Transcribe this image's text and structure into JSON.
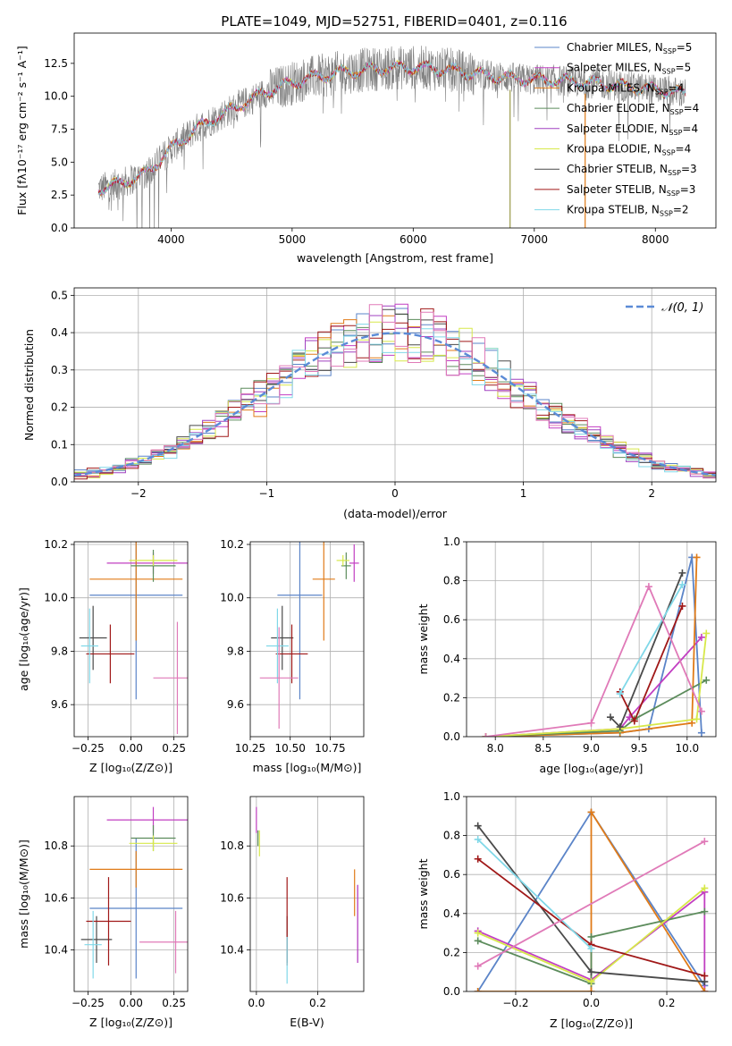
{
  "title": "PLATE=1049, MJD=52751, FIBERID=0401, z=0.116",
  "colors": {
    "miles_chabrier": "#5b84c8",
    "miles_salpeter": "#c23fc2",
    "miles_kroupa": "#e07b18",
    "elodie_chabrier": "#5c8c5c",
    "elodie_salpeter": "#a040c0",
    "elodie_kroupa": "#d7e84a",
    "stelib_chabrier": "#4a4a4a",
    "stelib_salpeter": "#a01818",
    "stelib_kroupa": "#80d8e8",
    "extra_pink": "#e07ab8",
    "gauss": "#5b8bd6",
    "data_gray": "#7f7f7f"
  },
  "chart_data": [
    {
      "type": "line",
      "title": "PLATE=1049, MJD=52751, FIBERID=0401, z=0.116",
      "xlabel": "wavelength [Angstrom, rest frame]",
      "ylabel": "Flux [fλ10⁻¹⁷ erg cm⁻² s⁻¹ A⁻¹]",
      "xlim": [
        3200,
        8500
      ],
      "ylim": [
        0,
        14.8
      ],
      "xticks": [
        "4000",
        "5000",
        "6000",
        "7000",
        "8000"
      ],
      "yticks": [
        "0.0",
        "2.5",
        "5.0",
        "7.5",
        "10.0",
        "12.5"
      ],
      "continuum": {
        "x": [
          3400,
          3600,
          3800,
          4000,
          4200,
          4500,
          4800,
          5100,
          5400,
          5700,
          6000,
          6300,
          6600,
          6900,
          7200,
          7500,
          7800,
          8100,
          8250
        ],
        "y": [
          3.0,
          3.4,
          4.2,
          6.0,
          7.5,
          9.0,
          10.4,
          11.3,
          11.8,
          12.1,
          12.2,
          12.0,
          11.6,
          11.3,
          11.2,
          11.0,
          10.7,
          10.4,
          10.2
        ]
      },
      "legend_position": "top-right",
      "legend": [
        {
          "label": "Chabrier MILES, N",
          "sub": "SSP",
          "tail": "=5",
          "color": "#5b84c8"
        },
        {
          "label": "Salpeter MILES, N",
          "sub": "SSP",
          "tail": "=5",
          "color": "#c23fc2"
        },
        {
          "label": "Kroupa MILES, N",
          "sub": "SSP",
          "tail": "=4",
          "color": "#e07b18"
        },
        {
          "label": "Chabrier ELODIE, N",
          "sub": "SSP",
          "tail": "=4",
          "color": "#5c8c5c"
        },
        {
          "label": "Salpeter ELODIE, N",
          "sub": "SSP",
          "tail": "=4",
          "color": "#a040c0"
        },
        {
          "label": "Kroupa ELODIE, N",
          "sub": "SSP",
          "tail": "=4",
          "color": "#d7e84a"
        },
        {
          "label": "Chabrier STELIB, N",
          "sub": "SSP",
          "tail": "=3",
          "color": "#4a4a4a"
        },
        {
          "label": "Salpeter STELIB, N",
          "sub": "SSP",
          "tail": "=3",
          "color": "#a01818"
        },
        {
          "label": "Kroupa STELIB, N",
          "sub": "SSP",
          "tail": "=2",
          "color": "#80d8e8"
        }
      ]
    },
    {
      "type": "histogram",
      "xlabel": "(data-model)/error",
      "ylabel": "Normed distribution",
      "xlim": [
        -2.5,
        2.5
      ],
      "ylim": [
        0,
        0.52
      ],
      "xticks": [
        "−2",
        "−1",
        "0",
        "1",
        "2"
      ],
      "yticks": [
        "0.0",
        "0.1",
        "0.2",
        "0.3",
        "0.4",
        "0.5"
      ],
      "bin_width": 0.1,
      "gauss_label": "𝒩(0, 1)",
      "grid": true
    },
    {
      "type": "errorbar",
      "xlabel": "Z [log₁₀(Z/Z⊙)]",
      "ylabel": "age  [log₁₀(age/yr)]",
      "xlim": [
        -0.33,
        0.33
      ],
      "ylim": [
        9.48,
        10.21
      ],
      "xticks": [
        "−0.25",
        "0.00",
        "0.25"
      ],
      "yticks": [
        "9.6",
        "9.8",
        "10.0",
        "10.2"
      ],
      "points": [
        {
          "x": 0.03,
          "y": 10.01,
          "xerr": 0.27,
          "yerr": 0.39,
          "c": "#5b84c8"
        },
        {
          "x": 0.13,
          "y": 10.13,
          "xerr": 0.27,
          "yerr": 0.04,
          "c": "#c23fc2"
        },
        {
          "x": 0.03,
          "y": 10.07,
          "xerr": 0.27,
          "yerr": 0.23,
          "c": "#e07b18"
        },
        {
          "x": 0.13,
          "y": 10.12,
          "xerr": 0.13,
          "yerr": 0.06,
          "c": "#5c8c5c"
        },
        {
          "x": 0.13,
          "y": 10.14,
          "xerr": 0.14,
          "yerr": 0.02,
          "c": "#d7e84a"
        },
        {
          "x": -0.22,
          "y": 9.85,
          "xerr": 0.08,
          "yerr": 0.12,
          "c": "#4a4a4a"
        },
        {
          "x": -0.12,
          "y": 9.79,
          "xerr": 0.14,
          "yerr": 0.11,
          "c": "#a01818"
        },
        {
          "x": -0.24,
          "y": 9.82,
          "xerr": 0.05,
          "yerr": 0.14,
          "c": "#80d8e8"
        },
        {
          "x": 0.27,
          "y": 9.7,
          "xerr": 0.14,
          "yerr": 0.21,
          "c": "#e07ab8"
        }
      ]
    },
    {
      "type": "errorbar",
      "xlabel": "mass [log₁₀(M/M⊙)]",
      "xlim": [
        10.25,
        10.96
      ],
      "ylim": [
        9.48,
        10.21
      ],
      "xticks": [
        "10.25",
        "10.50",
        "10.75"
      ],
      "yticks": [
        "9.6",
        "9.8",
        "10.0",
        "10.2"
      ],
      "points": [
        {
          "x": 10.56,
          "y": 10.01,
          "xerr": 0.14,
          "yerr": 0.39,
          "c": "#5b84c8"
        },
        {
          "x": 10.9,
          "y": 10.13,
          "xerr": 0.03,
          "yerr": 0.07,
          "c": "#c23fc2"
        },
        {
          "x": 10.71,
          "y": 10.07,
          "xerr": 0.07,
          "yerr": 0.23,
          "c": "#e07b18"
        },
        {
          "x": 10.85,
          "y": 10.12,
          "xerr": 0.03,
          "yerr": 0.05,
          "c": "#5c8c5c"
        },
        {
          "x": 10.83,
          "y": 10.14,
          "xerr": 0.04,
          "yerr": 0.02,
          "c": "#d7e84a"
        },
        {
          "x": 10.45,
          "y": 9.85,
          "xerr": 0.07,
          "yerr": 0.12,
          "c": "#4a4a4a"
        },
        {
          "x": 10.51,
          "y": 9.79,
          "xerr": 0.1,
          "yerr": 0.11,
          "c": "#a01818"
        },
        {
          "x": 10.42,
          "y": 9.82,
          "xerr": 0.07,
          "yerr": 0.14,
          "c": "#80d8e8"
        },
        {
          "x": 10.43,
          "y": 9.7,
          "xerr": 0.12,
          "yerr": 0.19,
          "c": "#e07ab8"
        }
      ]
    },
    {
      "type": "line",
      "xlabel": "age  [log₁₀(age/yr)]",
      "ylabel": "mass weight",
      "xlim": [
        7.7,
        10.3
      ],
      "ylim": [
        0,
        1.0
      ],
      "xticks": [
        "8.0",
        "8.5",
        "9.0",
        "9.5",
        "10.0"
      ],
      "yticks": [
        "0.0",
        "0.2",
        "0.4",
        "0.6",
        "0.8",
        "1.0"
      ],
      "grid": true,
      "series": [
        {
          "c": "#5b84c8",
          "x": [
            7.9,
            9.3,
            9.6,
            10.05,
            10.15
          ],
          "y": [
            0.0,
            0.02,
            0.04,
            0.92,
            0.02
          ]
        },
        {
          "c": "#c23fc2",
          "x": [
            7.9,
            9.3,
            9.4,
            10.15
          ],
          "y": [
            0.0,
            0.04,
            0.1,
            0.51
          ]
        },
        {
          "c": "#e07b18",
          "x": [
            7.9,
            9.3,
            10.05,
            10.1
          ],
          "y": [
            0.0,
            0.02,
            0.07,
            0.92
          ]
        },
        {
          "c": "#5c8c5c",
          "x": [
            7.9,
            9.3,
            9.45,
            10.2
          ],
          "y": [
            0.0,
            0.03,
            0.09,
            0.29
          ]
        },
        {
          "c": "#d7e84a",
          "x": [
            7.9,
            9.3,
            10.1,
            10.2
          ],
          "y": [
            0.0,
            0.04,
            0.09,
            0.53
          ]
        },
        {
          "c": "#4a4a4a",
          "x": [
            9.2,
            9.3,
            9.95
          ],
          "y": [
            0.1,
            0.05,
            0.84
          ]
        },
        {
          "c": "#a01818",
          "x": [
            9.3,
            9.45,
            9.95
          ],
          "y": [
            0.23,
            0.08,
            0.67
          ]
        },
        {
          "c": "#80d8e8",
          "x": [
            9.3,
            9.95
          ],
          "y": [
            0.22,
            0.78
          ]
        },
        {
          "c": "#e07ab8",
          "x": [
            7.9,
            9.0,
            9.6,
            10.15
          ],
          "y": [
            0.0,
            0.07,
            0.77,
            0.13
          ]
        }
      ]
    },
    {
      "type": "errorbar",
      "xlabel": "Z [log₁₀(Z/Z⊙)]",
      "ylabel": "mass [log₁₀(M/M⊙)]",
      "xlim": [
        -0.33,
        0.33
      ],
      "ylim": [
        10.24,
        10.99
      ],
      "xticks": [
        "−0.25",
        "0.00",
        "0.25"
      ],
      "yticks": [
        "10.4",
        "10.6",
        "10.8"
      ],
      "points": [
        {
          "x": 0.03,
          "y": 10.56,
          "xerr": 0.27,
          "yerr": 0.27,
          "c": "#5b84c8"
        },
        {
          "x": 0.13,
          "y": 10.9,
          "xerr": 0.27,
          "yerr": 0.05,
          "c": "#c23fc2"
        },
        {
          "x": 0.03,
          "y": 10.71,
          "xerr": 0.27,
          "yerr": 0.07,
          "c": "#e07b18"
        },
        {
          "x": 0.13,
          "y": 10.83,
          "xerr": 0.13,
          "yerr": 0.05,
          "c": "#5c8c5c"
        },
        {
          "x": 0.13,
          "y": 10.81,
          "xerr": 0.14,
          "yerr": 0.03,
          "c": "#d7e84a"
        },
        {
          "x": -0.2,
          "y": 10.44,
          "xerr": 0.09,
          "yerr": 0.09,
          "c": "#4a4a4a"
        },
        {
          "x": -0.13,
          "y": 10.51,
          "xerr": 0.13,
          "yerr": 0.17,
          "c": "#a01818"
        },
        {
          "x": -0.22,
          "y": 10.42,
          "xerr": 0.05,
          "yerr": 0.13,
          "c": "#80d8e8"
        },
        {
          "x": 0.26,
          "y": 10.43,
          "xerr": 0.21,
          "yerr": 0.12,
          "c": "#e07ab8"
        }
      ]
    },
    {
      "type": "errorbar",
      "xlabel": "E(B-V)",
      "xlim": [
        -0.02,
        0.35
      ],
      "ylim": [
        10.24,
        10.99
      ],
      "xticks": [
        "0.0",
        "0.2"
      ],
      "yticks": [
        "10.4",
        "10.6",
        "10.8"
      ],
      "points": [
        {
          "x": 0.33,
          "y": 10.5,
          "xerr": 0,
          "yerr": 0.15,
          "c": "#5b84c8"
        },
        {
          "x": 0.0,
          "y": 10.9,
          "xerr": 0,
          "yerr": 0.05,
          "c": "#c23fc2"
        },
        {
          "x": 0.32,
          "y": 10.62,
          "xerr": 0,
          "yerr": 0.09,
          "c": "#e07b18"
        },
        {
          "x": 0.005,
          "y": 10.83,
          "xerr": 0,
          "yerr": 0.03,
          "c": "#5c8c5c"
        },
        {
          "x": 0.01,
          "y": 10.81,
          "xerr": 0,
          "yerr": 0.05,
          "c": "#d7e84a"
        },
        {
          "x": 0.1,
          "y": 10.44,
          "xerr": 0,
          "yerr": 0.09,
          "c": "#4a4a4a"
        },
        {
          "x": 0.1,
          "y": 10.51,
          "xerr": 0,
          "yerr": 0.17,
          "c": "#a01818"
        },
        {
          "x": 0.1,
          "y": 10.36,
          "xerr": 0,
          "yerr": 0.09,
          "c": "#80d8e8"
        },
        {
          "x": 0.33,
          "y": 10.5,
          "xerr": 0,
          "yerr": 0.15,
          "c": "#c23fc2"
        }
      ]
    },
    {
      "type": "line",
      "xlabel": "Z [log₁₀(Z/Z⊙)]",
      "ylabel": "mass weight",
      "xlim": [
        -0.33,
        0.33
      ],
      "ylim": [
        0,
        1.0
      ],
      "xticks": [
        "−0.2",
        "0.0",
        "0.2"
      ],
      "yticks": [
        "0.0",
        "0.2",
        "0.4",
        "0.6",
        "0.8",
        "1.0"
      ],
      "grid": true,
      "series": [
        {
          "c": "#5b84c8",
          "x": [
            -0.3,
            0.0,
            0.3
          ],
          "y": [
            0.0,
            0.92,
            0.03
          ]
        },
        {
          "c": "#c23fc2",
          "x": [
            -0.3,
            0.0,
            0.3,
            0.3
          ],
          "y": [
            0.31,
            0.06,
            0.51,
            0.0
          ]
        },
        {
          "c": "#e07b18",
          "x": [
            -0.3,
            0.0,
            0.0,
            0.3
          ],
          "y": [
            0.0,
            0.0,
            0.92,
            0.0
          ]
        },
        {
          "c": "#5c8c5c",
          "x": [
            -0.3,
            0.0,
            0.0,
            0.3
          ],
          "y": [
            0.26,
            0.04,
            0.28,
            0.41
          ]
        },
        {
          "c": "#d7e84a",
          "x": [
            -0.3,
            0.0,
            0.3
          ],
          "y": [
            0.3,
            0.05,
            0.53
          ]
        },
        {
          "c": "#4a4a4a",
          "x": [
            -0.3,
            0.0,
            0.3
          ],
          "y": [
            0.85,
            0.1,
            0.05
          ]
        },
        {
          "c": "#a01818",
          "x": [
            -0.3,
            0.0,
            0.0,
            0.3
          ],
          "y": [
            0.68,
            0.24,
            0.24,
            0.08
          ]
        },
        {
          "c": "#80d8e8",
          "x": [
            -0.3,
            0.0
          ],
          "y": [
            0.78,
            0.22
          ]
        },
        {
          "c": "#e07ab8",
          "x": [
            -0.3,
            0.3
          ],
          "y": [
            0.13,
            0.77
          ]
        }
      ]
    }
  ]
}
